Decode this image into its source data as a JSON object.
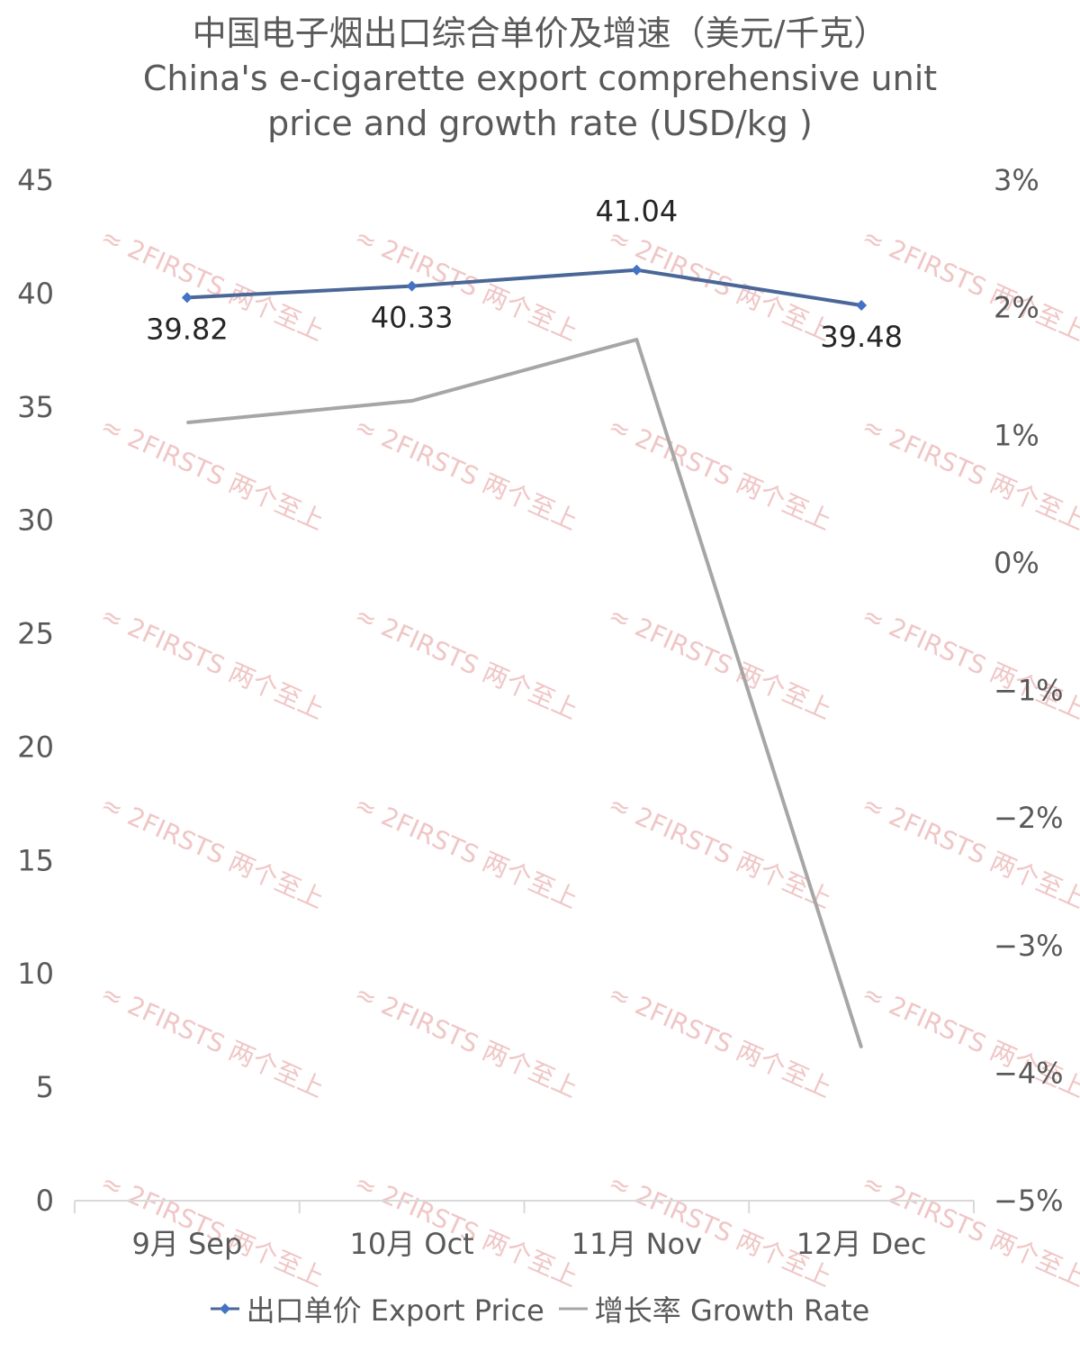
{
  "chart_data": {
    "type": "line",
    "title": "中国电子烟出口综合单价及增速（美元/千克）",
    "subtitle_line1": "China's e-cigarette export comprehensive unit",
    "subtitle_line2": "price and growth rate (USD/kg )",
    "categories": [
      "9月 Sep",
      "10月 Oct",
      "11月 Nov",
      "12月 Dec"
    ],
    "y_left": {
      "min": 0,
      "max": 45,
      "step": 5,
      "ticks": [
        "0",
        "5",
        "10",
        "15",
        "20",
        "25",
        "30",
        "35",
        "40",
        "45"
      ]
    },
    "y_right": {
      "min": -5,
      "max": 3,
      "step": 1,
      "ticks": [
        "−5%",
        "−4%",
        "−3%",
        "−2%",
        "−1%",
        "0%",
        "1%",
        "2%",
        "3%"
      ]
    },
    "series": [
      {
        "name": "出口单价 Export Price",
        "axis": "left",
        "color": "#4a6797",
        "marker_color": "#4472c4",
        "values": [
          39.82,
          40.33,
          41.04,
          39.48
        ],
        "data_labels": [
          "39.82",
          "40.33",
          "41.04",
          "39.48"
        ]
      },
      {
        "name": "增长率 Growth Rate",
        "axis": "right",
        "color": "#a6a6a6",
        "values": [
          1.1,
          1.27,
          1.75,
          -3.8
        ]
      }
    ],
    "grid": false,
    "legend_position": "bottom"
  },
  "watermark": {
    "text": "2FIRSTS 两个至上",
    "color": "#f0c6c6"
  }
}
